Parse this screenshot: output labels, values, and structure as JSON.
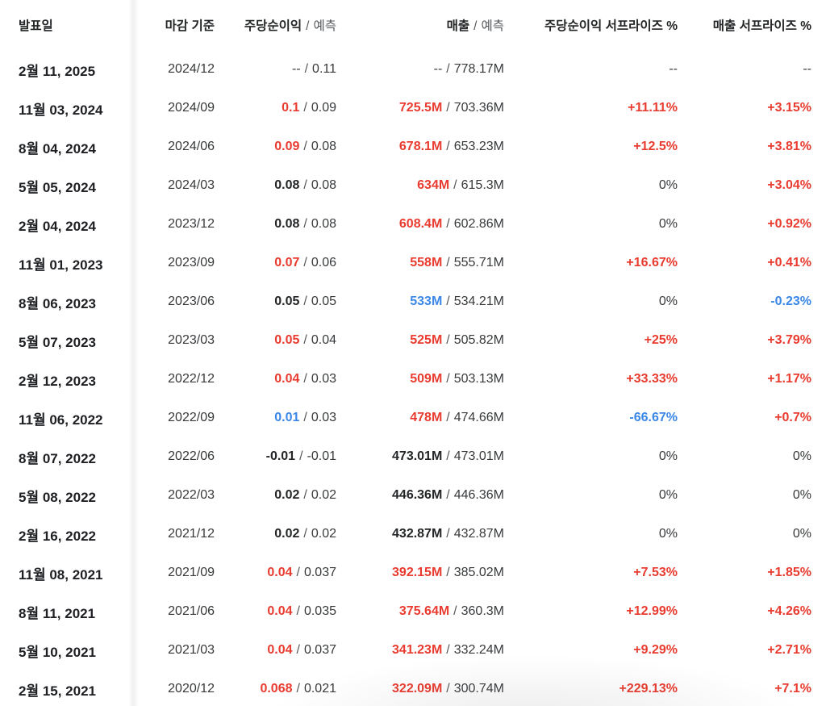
{
  "colors": {
    "positive_red": "#e93b2f",
    "negative_blue": "#3a87e8",
    "text_dark": "#232526",
    "text_secondary": "#37393b",
    "divider": "#e7e9eb"
  },
  "table": {
    "separator": "/",
    "headers": {
      "date": "발표일",
      "period": "마감 기준",
      "eps": {
        "main": "주당순이익",
        "sub": "예측"
      },
      "revenue": {
        "main": "매출",
        "sub": "예측"
      },
      "eps_surprise": "주당순이익 서프라이즈 %",
      "revenue_surprise": "매출 서프라이즈 %"
    },
    "rows": [
      {
        "date": "2월 11, 2025",
        "period": "2024/12",
        "eps_actual": "--",
        "eps_color": "plain",
        "eps_forecast": "0.11",
        "rev_actual": "--",
        "rev_color": "plain",
        "rev_forecast": "778.17M",
        "eps_surprise": "--",
        "eps_surprise_color": "plain",
        "rev_surprise": "--",
        "rev_surprise_color": "plain"
      },
      {
        "date": "11월 03, 2024",
        "period": "2024/09",
        "eps_actual": "0.1",
        "eps_color": "red",
        "eps_forecast": "0.09",
        "rev_actual": "725.5M",
        "rev_color": "red",
        "rev_forecast": "703.36M",
        "eps_surprise": "+11.11%",
        "eps_surprise_color": "red",
        "rev_surprise": "+3.15%",
        "rev_surprise_color": "red"
      },
      {
        "date": "8월 04, 2024",
        "period": "2024/06",
        "eps_actual": "0.09",
        "eps_color": "red",
        "eps_forecast": "0.08",
        "rev_actual": "678.1M",
        "rev_color": "red",
        "rev_forecast": "653.23M",
        "eps_surprise": "+12.5%",
        "eps_surprise_color": "red",
        "rev_surprise": "+3.81%",
        "rev_surprise_color": "red"
      },
      {
        "date": "5월 05, 2024",
        "period": "2024/03",
        "eps_actual": "0.08",
        "eps_color": "dark",
        "eps_forecast": "0.08",
        "rev_actual": "634M",
        "rev_color": "red",
        "rev_forecast": "615.3M",
        "eps_surprise": "0%",
        "eps_surprise_color": "plain",
        "rev_surprise": "+3.04%",
        "rev_surprise_color": "red"
      },
      {
        "date": "2월 04, 2024",
        "period": "2023/12",
        "eps_actual": "0.08",
        "eps_color": "dark",
        "eps_forecast": "0.08",
        "rev_actual": "608.4M",
        "rev_color": "red",
        "rev_forecast": "602.86M",
        "eps_surprise": "0%",
        "eps_surprise_color": "plain",
        "rev_surprise": "+0.92%",
        "rev_surprise_color": "red"
      },
      {
        "date": "11월 01, 2023",
        "period": "2023/09",
        "eps_actual": "0.07",
        "eps_color": "red",
        "eps_forecast": "0.06",
        "rev_actual": "558M",
        "rev_color": "red",
        "rev_forecast": "555.71M",
        "eps_surprise": "+16.67%",
        "eps_surprise_color": "red",
        "rev_surprise": "+0.41%",
        "rev_surprise_color": "red"
      },
      {
        "date": "8월 06, 2023",
        "period": "2023/06",
        "eps_actual": "0.05",
        "eps_color": "dark",
        "eps_forecast": "0.05",
        "rev_actual": "533M",
        "rev_color": "blue",
        "rev_forecast": "534.21M",
        "eps_surprise": "0%",
        "eps_surprise_color": "plain",
        "rev_surprise": "-0.23%",
        "rev_surprise_color": "blue"
      },
      {
        "date": "5월 07, 2023",
        "period": "2023/03",
        "eps_actual": "0.05",
        "eps_color": "red",
        "eps_forecast": "0.04",
        "rev_actual": "525M",
        "rev_color": "red",
        "rev_forecast": "505.82M",
        "eps_surprise": "+25%",
        "eps_surprise_color": "red",
        "rev_surprise": "+3.79%",
        "rev_surprise_color": "red"
      },
      {
        "date": "2월 12, 2023",
        "period": "2022/12",
        "eps_actual": "0.04",
        "eps_color": "red",
        "eps_forecast": "0.03",
        "rev_actual": "509M",
        "rev_color": "red",
        "rev_forecast": "503.13M",
        "eps_surprise": "+33.33%",
        "eps_surprise_color": "red",
        "rev_surprise": "+1.17%",
        "rev_surprise_color": "red"
      },
      {
        "date": "11월 06, 2022",
        "period": "2022/09",
        "eps_actual": "0.01",
        "eps_color": "blue",
        "eps_forecast": "0.03",
        "rev_actual": "478M",
        "rev_color": "red",
        "rev_forecast": "474.66M",
        "eps_surprise": "-66.67%",
        "eps_surprise_color": "blue",
        "rev_surprise": "+0.7%",
        "rev_surprise_color": "red"
      },
      {
        "date": "8월 07, 2022",
        "period": "2022/06",
        "eps_actual": "-0.01",
        "eps_color": "dark",
        "eps_forecast": "-0.01",
        "rev_actual": "473.01M",
        "rev_color": "dark",
        "rev_forecast": "473.01M",
        "eps_surprise": "0%",
        "eps_surprise_color": "plain",
        "rev_surprise": "0%",
        "rev_surprise_color": "plain"
      },
      {
        "date": "5월 08, 2022",
        "period": "2022/03",
        "eps_actual": "0.02",
        "eps_color": "dark",
        "eps_forecast": "0.02",
        "rev_actual": "446.36M",
        "rev_color": "dark",
        "rev_forecast": "446.36M",
        "eps_surprise": "0%",
        "eps_surprise_color": "plain",
        "rev_surprise": "0%",
        "rev_surprise_color": "plain"
      },
      {
        "date": "2월 16, 2022",
        "period": "2021/12",
        "eps_actual": "0.02",
        "eps_color": "dark",
        "eps_forecast": "0.02",
        "rev_actual": "432.87M",
        "rev_color": "dark",
        "rev_forecast": "432.87M",
        "eps_surprise": "0%",
        "eps_surprise_color": "plain",
        "rev_surprise": "0%",
        "rev_surprise_color": "plain"
      },
      {
        "date": "11월 08, 2021",
        "period": "2021/09",
        "eps_actual": "0.04",
        "eps_color": "red",
        "eps_forecast": "0.037",
        "rev_actual": "392.15M",
        "rev_color": "red",
        "rev_forecast": "385.02M",
        "eps_surprise": "+7.53%",
        "eps_surprise_color": "red",
        "rev_surprise": "+1.85%",
        "rev_surprise_color": "red"
      },
      {
        "date": "8월 11, 2021",
        "period": "2021/06",
        "eps_actual": "0.04",
        "eps_color": "red",
        "eps_forecast": "0.035",
        "rev_actual": "375.64M",
        "rev_color": "red",
        "rev_forecast": "360.3M",
        "eps_surprise": "+12.99%",
        "eps_surprise_color": "red",
        "rev_surprise": "+4.26%",
        "rev_surprise_color": "red"
      },
      {
        "date": "5월 10, 2021",
        "period": "2021/03",
        "eps_actual": "0.04",
        "eps_color": "red",
        "eps_forecast": "0.037",
        "rev_actual": "341.23M",
        "rev_color": "red",
        "rev_forecast": "332.24M",
        "eps_surprise": "+9.29%",
        "eps_surprise_color": "red",
        "rev_surprise": "+2.71%",
        "rev_surprise_color": "red"
      },
      {
        "date": "2월 15, 2021",
        "period": "2020/12",
        "eps_actual": "0.068",
        "eps_color": "red",
        "eps_forecast": "0.021",
        "rev_actual": "322.09M",
        "rev_color": "red",
        "rev_forecast": "300.74M",
        "eps_surprise": "+229.13%",
        "eps_surprise_color": "red",
        "rev_surprise": "+7.1%",
        "rev_surprise_color": "red"
      }
    ]
  }
}
